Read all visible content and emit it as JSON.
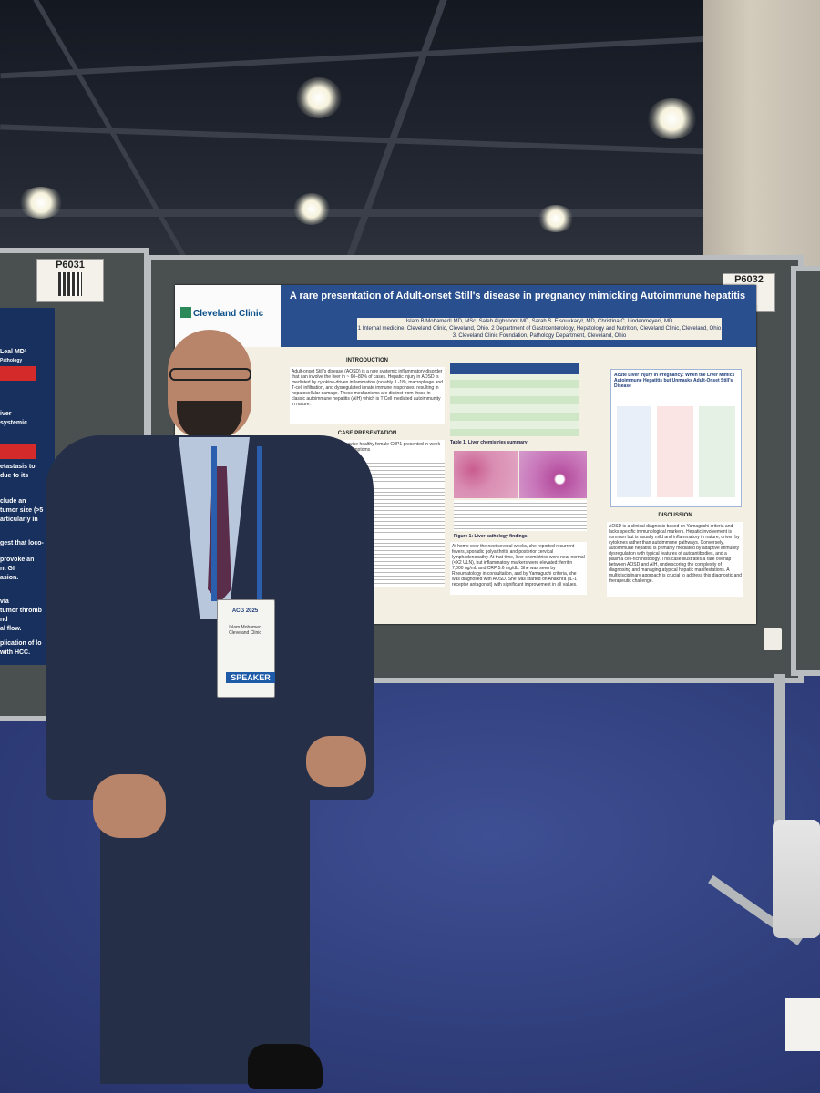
{
  "poster": {
    "title": "A rare presentation of Adult-onset Still's disease in pregnancy mimicking Autoimmune hepatitis",
    "institution_logo": "Cleveland Clinic",
    "authors": "Islam B Mohamed¹ MD, MSc, Saleh Alghsoon² MD, Sarah S. Elsoukkary³, MD, Christina C. Lindenmeyer², MD",
    "affiliations": "1 Internal medicine, Cleveland Clinic, Cleveland, Ohio. 2 Department of Gastroenterology, Hepatology and Nutrition, Cleveland Clinic, Cleveland, Ohio 3. Cleveland Clinic Foundation, Pathology Department, Cleveland, Ohio",
    "sections": {
      "introduction": "INTRODUCTION",
      "case_presentation": "CASE PRESENTATION",
      "discussion": "DISCUSSION"
    },
    "intro_text": "Adult-onset Still's disease (AOSD) is a rare systemic inflammatory disorder that can involve the liver in ~ 60–80% of cases. Hepatic injury in AOSD is mediated by cytokine-driven inflammation (notably IL-18), macrophage and T-cell infiltration, and dysregulated innate immune responses, resulting in hepatocellular damage. These mechanisms are distinct from those in classic autoimmune hepatitis (AIH) which is T Cell mediated autoimmunity in nature.",
    "case_text": "A 31-year-old Hispanic otherwise healthy female G0P1 presented in week 31 of pregnancy with flu-like symptoms",
    "table_caption": "Table 1: Liver chemistries summary",
    "figure_caption": "Figure 1: Liver pathology findings",
    "followup_text": "At home over the next several weeks, she reported recurrent fevers, sporadic polyarthritis and posterior cervical lymphadenopathy. At that time, liver chemistries were near normal (<X2 ULN), but inflammatory markers were elevated: ferritin 7,000 ng/mL and CRP 5.6 mg/dL. She was seen by Rheumatology in consultation, and by Yamaguchi criteria, she was diagnosed with AOSD. She was started on Anakinra (IL-1 receptor antagonist) with significant improvement in all values.",
    "right_panel_title": "Acute Liver Injury in Pregnancy: When the Liver Mimics Autoimmune Hepatitis but Unmasks Adult-Onset Still's Disease",
    "discussion_text": "AOSD is a clinical diagnosis based on Yamaguchi criteria and lacks specific immunological markers. Hepatic involvement is common but is usually mild and inflammatory in nature, driven by cytokines rather than autoimmune pathways. Conversely, autoimmune hepatitis is primarily mediated by adaptive immunity dysregulation with typical features of autoantibodies, and a plasma cell-rich histology. This case illustrates a rare overlap between AOSD and AIH, underscoring the complexity of diagnosing and managing atypical hepatic manifestations. A multidisciplinary approach is crucial to address this diagnostic and therapeutic challenge."
  },
  "booth_tags": {
    "left": "P6031",
    "right": "P6032"
  },
  "left_poster": {
    "lines": [
      "Leal MD²",
      "Pathology",
      "iver",
      "systemic",
      "etastasis to",
      "due to its",
      "clude an",
      "tumor size (>5",
      "articularly in",
      "gest that loco-",
      "provoke an",
      "nt GI",
      "asion.",
      "via",
      "tumor thromb",
      "nd",
      "al flow.",
      "plication of lo",
      "with HCC."
    ]
  },
  "badge": {
    "event": "ACG 2025",
    "name": "Islam Mohamed",
    "org": "Cleveland Clinic",
    "role": "SPEAKER"
  },
  "colors": {
    "poster_header": "#2a4f8f",
    "carpet": "#2f3d7a",
    "speaker_ribbon": "#1d5aa8"
  }
}
